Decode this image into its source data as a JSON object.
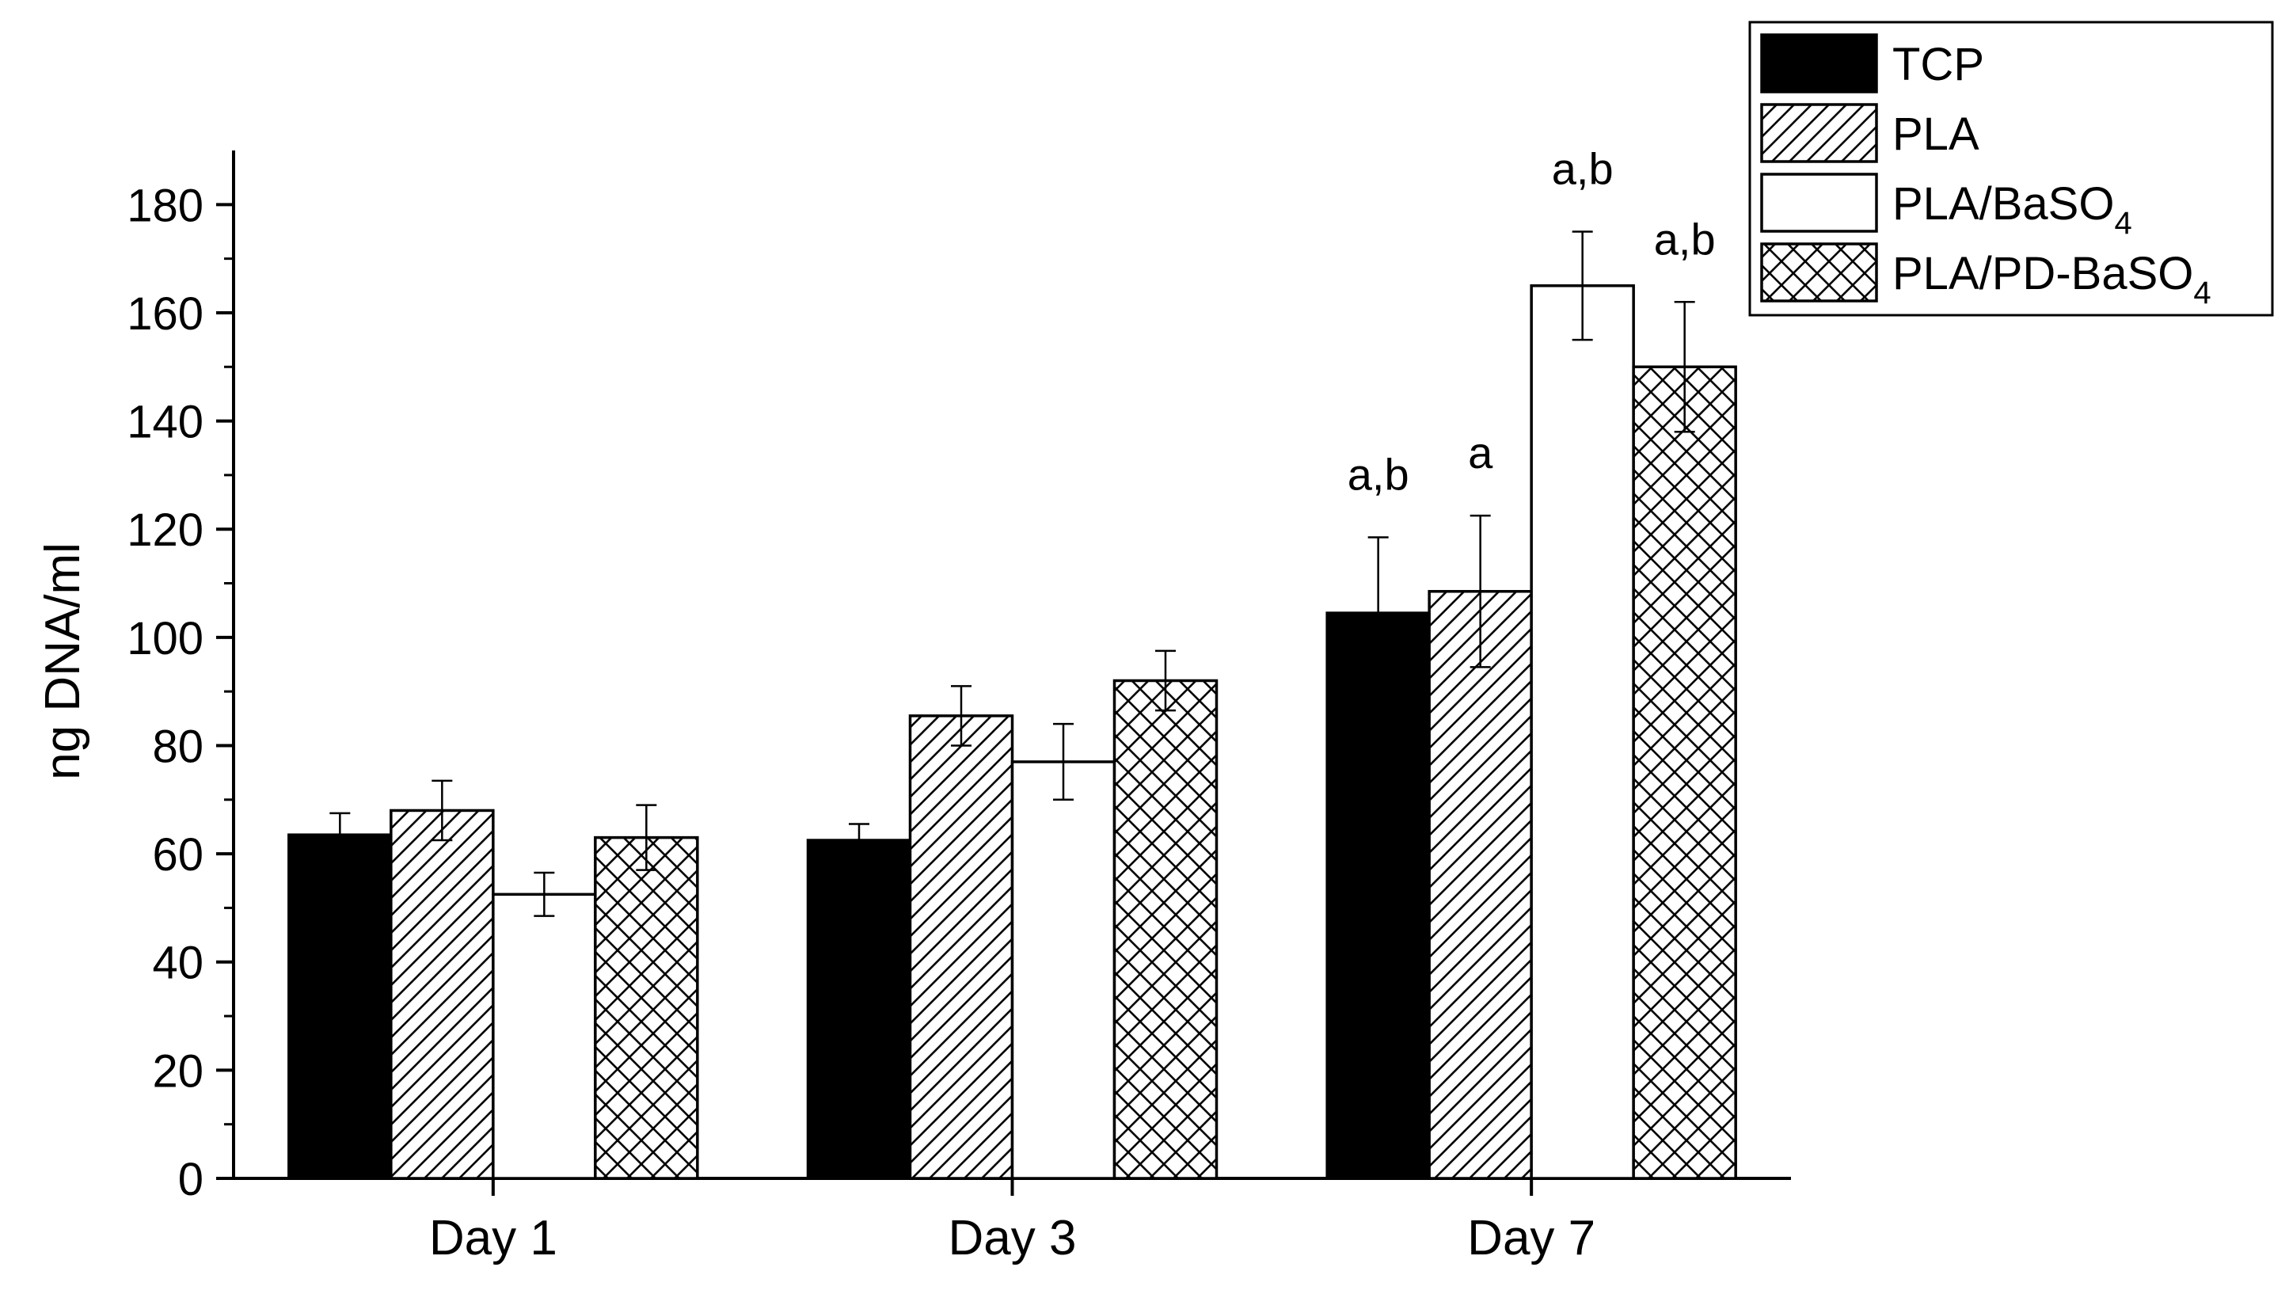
{
  "chart_data": {
    "type": "bar",
    "title": "",
    "xlabel": "",
    "ylabel": "ng DNA/ml",
    "ylim": [
      0,
      190
    ],
    "yticks": [
      0,
      20,
      40,
      60,
      80,
      100,
      120,
      140,
      160,
      180
    ],
    "categories": [
      "Day 1",
      "Day 3",
      "Day 7"
    ],
    "series": [
      {
        "name": "TCP",
        "pattern": "solid",
        "values": [
          63.5,
          62.5,
          104.5
        ],
        "errors": [
          4,
          3,
          14
        ],
        "annotations": [
          "",
          "",
          "a,b"
        ]
      },
      {
        "name": "PLA",
        "pattern": "diagonal",
        "values": [
          68,
          85.5,
          108.5
        ],
        "errors": [
          5.5,
          5.5,
          14
        ],
        "annotations": [
          "",
          "",
          "a"
        ]
      },
      {
        "name": "PLA/BaSO4",
        "name_main": "PLA/BaSO",
        "name_sub": "4",
        "pattern": "none",
        "values": [
          52.5,
          77,
          165
        ],
        "errors": [
          4,
          7,
          10
        ],
        "annotations": [
          "",
          "",
          "a,b"
        ]
      },
      {
        "name": "PLA/PD-BaSO4",
        "name_main": "PLA/PD-BaSO",
        "name_sub": "4",
        "pattern": "crosshatch",
        "values": [
          63,
          92,
          150
        ],
        "errors": [
          6,
          5.5,
          12
        ],
        "annotations": [
          "",
          "",
          "a,b"
        ]
      }
    ],
    "grid": false,
    "legend_position": "top-right",
    "colors": {
      "bar_stroke": "#000000",
      "tcp_fill": "#000000",
      "open_fill": "#ffffff"
    }
  }
}
